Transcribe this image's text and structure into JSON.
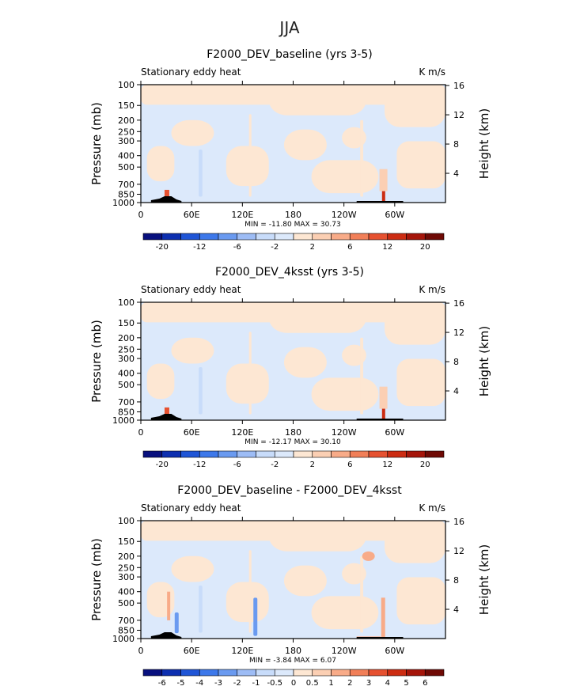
{
  "figure_title": "JJA",
  "chart_data": [
    {
      "type": "heatmap",
      "title": "F2000_DEV_baseline (yrs 3-5)",
      "left_label": "Stationary eddy heat",
      "right_label": "K m/s",
      "ylabel": "Pressure (mb)",
      "y2label": "Height (km)",
      "x_ticks": [
        "0",
        "60E",
        "120E",
        "180",
        "120W",
        "60W"
      ],
      "x_tick_values": [
        0,
        60,
        120,
        180,
        240,
        300
      ],
      "xlim": [
        0,
        360
      ],
      "y_ticks": [
        "100",
        "150",
        "200",
        "250",
        "300",
        "400",
        "500",
        "700",
        "850",
        "1000"
      ],
      "y_tick_values": [
        100,
        150,
        200,
        250,
        300,
        400,
        500,
        700,
        850,
        1000
      ],
      "ylim": [
        1000,
        100
      ],
      "y_scale": "log",
      "y2_ticks": [
        "4",
        "8",
        "12",
        "16"
      ],
      "y2_tick_values": [
        4,
        8,
        12,
        16
      ],
      "stats": "MIN = -11.80   MAX =  30.73",
      "min": -11.8,
      "max": 30.73,
      "colorbar": {
        "levels": [
          -24,
          -20,
          -16,
          -12,
          -8,
          -6,
          -4,
          -2,
          0,
          2,
          4,
          6,
          8,
          12,
          16,
          20,
          24
        ],
        "labels": [
          "-20",
          "-12",
          "-6",
          "-2",
          "2",
          "6",
          "12",
          "20"
        ],
        "colors": [
          "#08107e",
          "#0d2fb0",
          "#1f55d6",
          "#3d78ea",
          "#6a9af0",
          "#9dbcf5",
          "#c8dcfa",
          "#dce9fb",
          "#fde7d3",
          "#fbcfb3",
          "#f8ab88",
          "#f17f58",
          "#e65130",
          "#cc2c12",
          "#a5150a",
          "#6f0a05"
        ]
      }
    },
    {
      "type": "heatmap",
      "title": "F2000_DEV_4ksst (yrs 3-5)",
      "left_label": "Stationary eddy heat",
      "right_label": "K m/s",
      "ylabel": "Pressure (mb)",
      "y2label": "Height (km)",
      "x_ticks": [
        "0",
        "60E",
        "120E",
        "180",
        "120W",
        "60W"
      ],
      "x_tick_values": [
        0,
        60,
        120,
        180,
        240,
        300
      ],
      "xlim": [
        0,
        360
      ],
      "y_ticks": [
        "100",
        "150",
        "200",
        "250",
        "300",
        "400",
        "500",
        "700",
        "850",
        "1000"
      ],
      "y_tick_values": [
        100,
        150,
        200,
        250,
        300,
        400,
        500,
        700,
        850,
        1000
      ],
      "ylim": [
        1000,
        100
      ],
      "y_scale": "log",
      "y2_ticks": [
        "4",
        "8",
        "12",
        "16"
      ],
      "y2_tick_values": [
        4,
        8,
        12,
        16
      ],
      "stats": "MIN = -12.17   MAX =  30.10",
      "min": -12.17,
      "max": 30.1,
      "colorbar": {
        "levels": [
          -24,
          -20,
          -16,
          -12,
          -8,
          -6,
          -4,
          -2,
          0,
          2,
          4,
          6,
          8,
          12,
          16,
          20,
          24
        ],
        "labels": [
          "-20",
          "-12",
          "-6",
          "-2",
          "2",
          "6",
          "12",
          "20"
        ],
        "colors": [
          "#08107e",
          "#0d2fb0",
          "#1f55d6",
          "#3d78ea",
          "#6a9af0",
          "#9dbcf5",
          "#c8dcfa",
          "#dce9fb",
          "#fde7d3",
          "#fbcfb3",
          "#f8ab88",
          "#f17f58",
          "#e65130",
          "#cc2c12",
          "#a5150a",
          "#6f0a05"
        ]
      }
    },
    {
      "type": "heatmap",
      "title": "F2000_DEV_baseline - F2000_DEV_4ksst",
      "left_label": "Stationary eddy heat",
      "right_label": "K m/s",
      "ylabel": "Pressure (mb)",
      "y2label": "Height (km)",
      "x_ticks": [
        "0",
        "60E",
        "120E",
        "180",
        "120W",
        "60W"
      ],
      "x_tick_values": [
        0,
        60,
        120,
        180,
        240,
        300
      ],
      "xlim": [
        0,
        360
      ],
      "y_ticks": [
        "100",
        "150",
        "200",
        "250",
        "300",
        "400",
        "500",
        "700",
        "850",
        "1000"
      ],
      "y_tick_values": [
        100,
        150,
        200,
        250,
        300,
        400,
        500,
        700,
        850,
        1000
      ],
      "ylim": [
        1000,
        100
      ],
      "y_scale": "log",
      "y2_ticks": [
        "4",
        "8",
        "12",
        "16"
      ],
      "y2_tick_values": [
        4,
        8,
        12,
        16
      ],
      "stats": "MIN =  -3.84   MAX =   6.07",
      "min": -3.84,
      "max": 6.07,
      "colorbar": {
        "levels": [
          -7,
          -6,
          -5,
          -4,
          -3,
          -2,
          -1,
          -0.5,
          0,
          0.5,
          1,
          2,
          3,
          4,
          5,
          6,
          7
        ],
        "labels": [
          "-6",
          "-5",
          "-4",
          "-3",
          "-2",
          "-1",
          "-0.5",
          "0",
          "0.5",
          "1",
          "2",
          "3",
          "4",
          "5",
          "6"
        ],
        "colors": [
          "#08107e",
          "#0d2fb0",
          "#1f55d6",
          "#3d78ea",
          "#6a9af0",
          "#9dbcf5",
          "#c8dcfa",
          "#dce9fb",
          "#fde7d3",
          "#fbcfb3",
          "#f8ab88",
          "#f17f58",
          "#e65130",
          "#cc2c12",
          "#a5150a",
          "#6f0a05"
        ]
      }
    }
  ]
}
